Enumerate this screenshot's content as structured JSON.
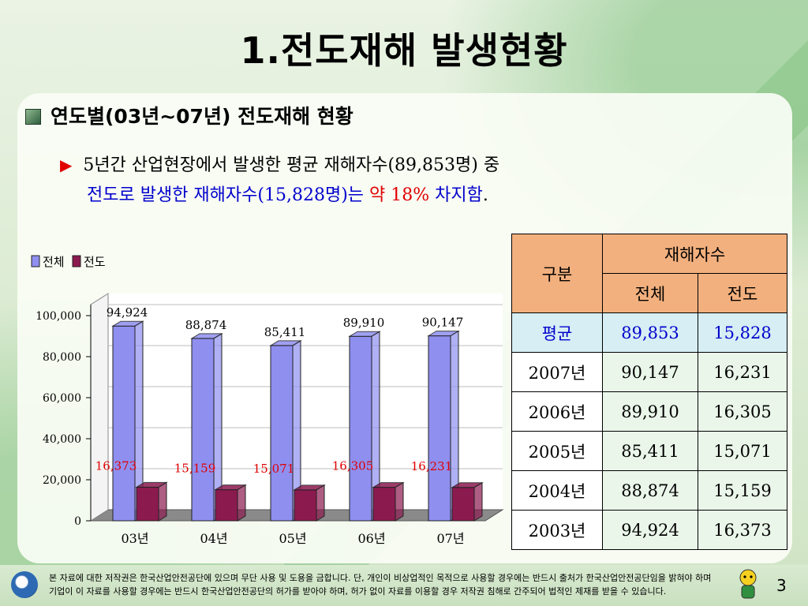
{
  "title": "1.전도재해 발생현황",
  "section_heading": "연도별(03년~07년) 전도재해 현황",
  "description": {
    "line1": "5년간 산업현장에서 발생한 평균 재해자수(89,853명) 중",
    "line2_a": "전도로 발생한 재해자수(15,828명)는",
    "line2_b": "약 18%",
    "line2_c": "차지함",
    "line2_d": "."
  },
  "colors": {
    "total": "#8f8ff0",
    "fall": "#8b1a4f",
    "arrow": "#e00000"
  },
  "chart_data": {
    "type": "bar",
    "categories": [
      "03년",
      "04년",
      "05년",
      "06년",
      "07년"
    ],
    "series": [
      {
        "name": "전체",
        "values": [
          94924,
          88874,
          85411,
          89910,
          90147
        ]
      },
      {
        "name": "전도",
        "values": [
          16373,
          15159,
          15071,
          16305,
          16231
        ]
      }
    ],
    "value_labels_total": [
      "94,924",
      "88,874",
      "85,411",
      "89,910",
      "90,147"
    ],
    "value_labels_fall": [
      "16,373",
      "15,159",
      "15,071",
      "16,305",
      "16,231"
    ],
    "yticks": [
      "0",
      "20,000",
      "40,000",
      "60,000",
      "80,000",
      "100,000"
    ],
    "ytick_values": [
      0,
      20000,
      40000,
      60000,
      80000,
      100000
    ],
    "ylim": [
      0,
      100000
    ],
    "legend_position": "top-left",
    "style": "3d"
  },
  "table": {
    "header_group": "구분",
    "header_span": "재해자수",
    "col_total": "전체",
    "col_fall": "전도",
    "rows": [
      {
        "label": "평균",
        "total": "89,853",
        "fall": "15,828"
      },
      {
        "label": "2007년",
        "total": "90,147",
        "fall": "16,231"
      },
      {
        "label": "2006년",
        "total": "89,910",
        "fall": "16,305"
      },
      {
        "label": "2005년",
        "total": "85,411",
        "fall": "15,071"
      },
      {
        "label": "2004년",
        "total": "88,874",
        "fall": "15,159"
      },
      {
        "label": "2003년",
        "total": "94,924",
        "fall": "16,373"
      }
    ]
  },
  "footer": {
    "line1": "본 자료에 대한 저작권은 한국산업안전공단에 있으며 무단 사용 및 도용을 금합니다. 단, 개인이 비상업적인 목적으로 사용할 경우에는 반드시 출처가 한국산업안전공단임을 밝혀야 하며",
    "line2": "기업이 이 자료를 사용할 경우에는 반드시 한국산업안전공단의 허가를 받아야 하며, 허가 없이 자료를 이용할 경우 저작권 침해로 간주되어 법적인 제재를 받을 수 있습니다.",
    "page_number": "3"
  }
}
